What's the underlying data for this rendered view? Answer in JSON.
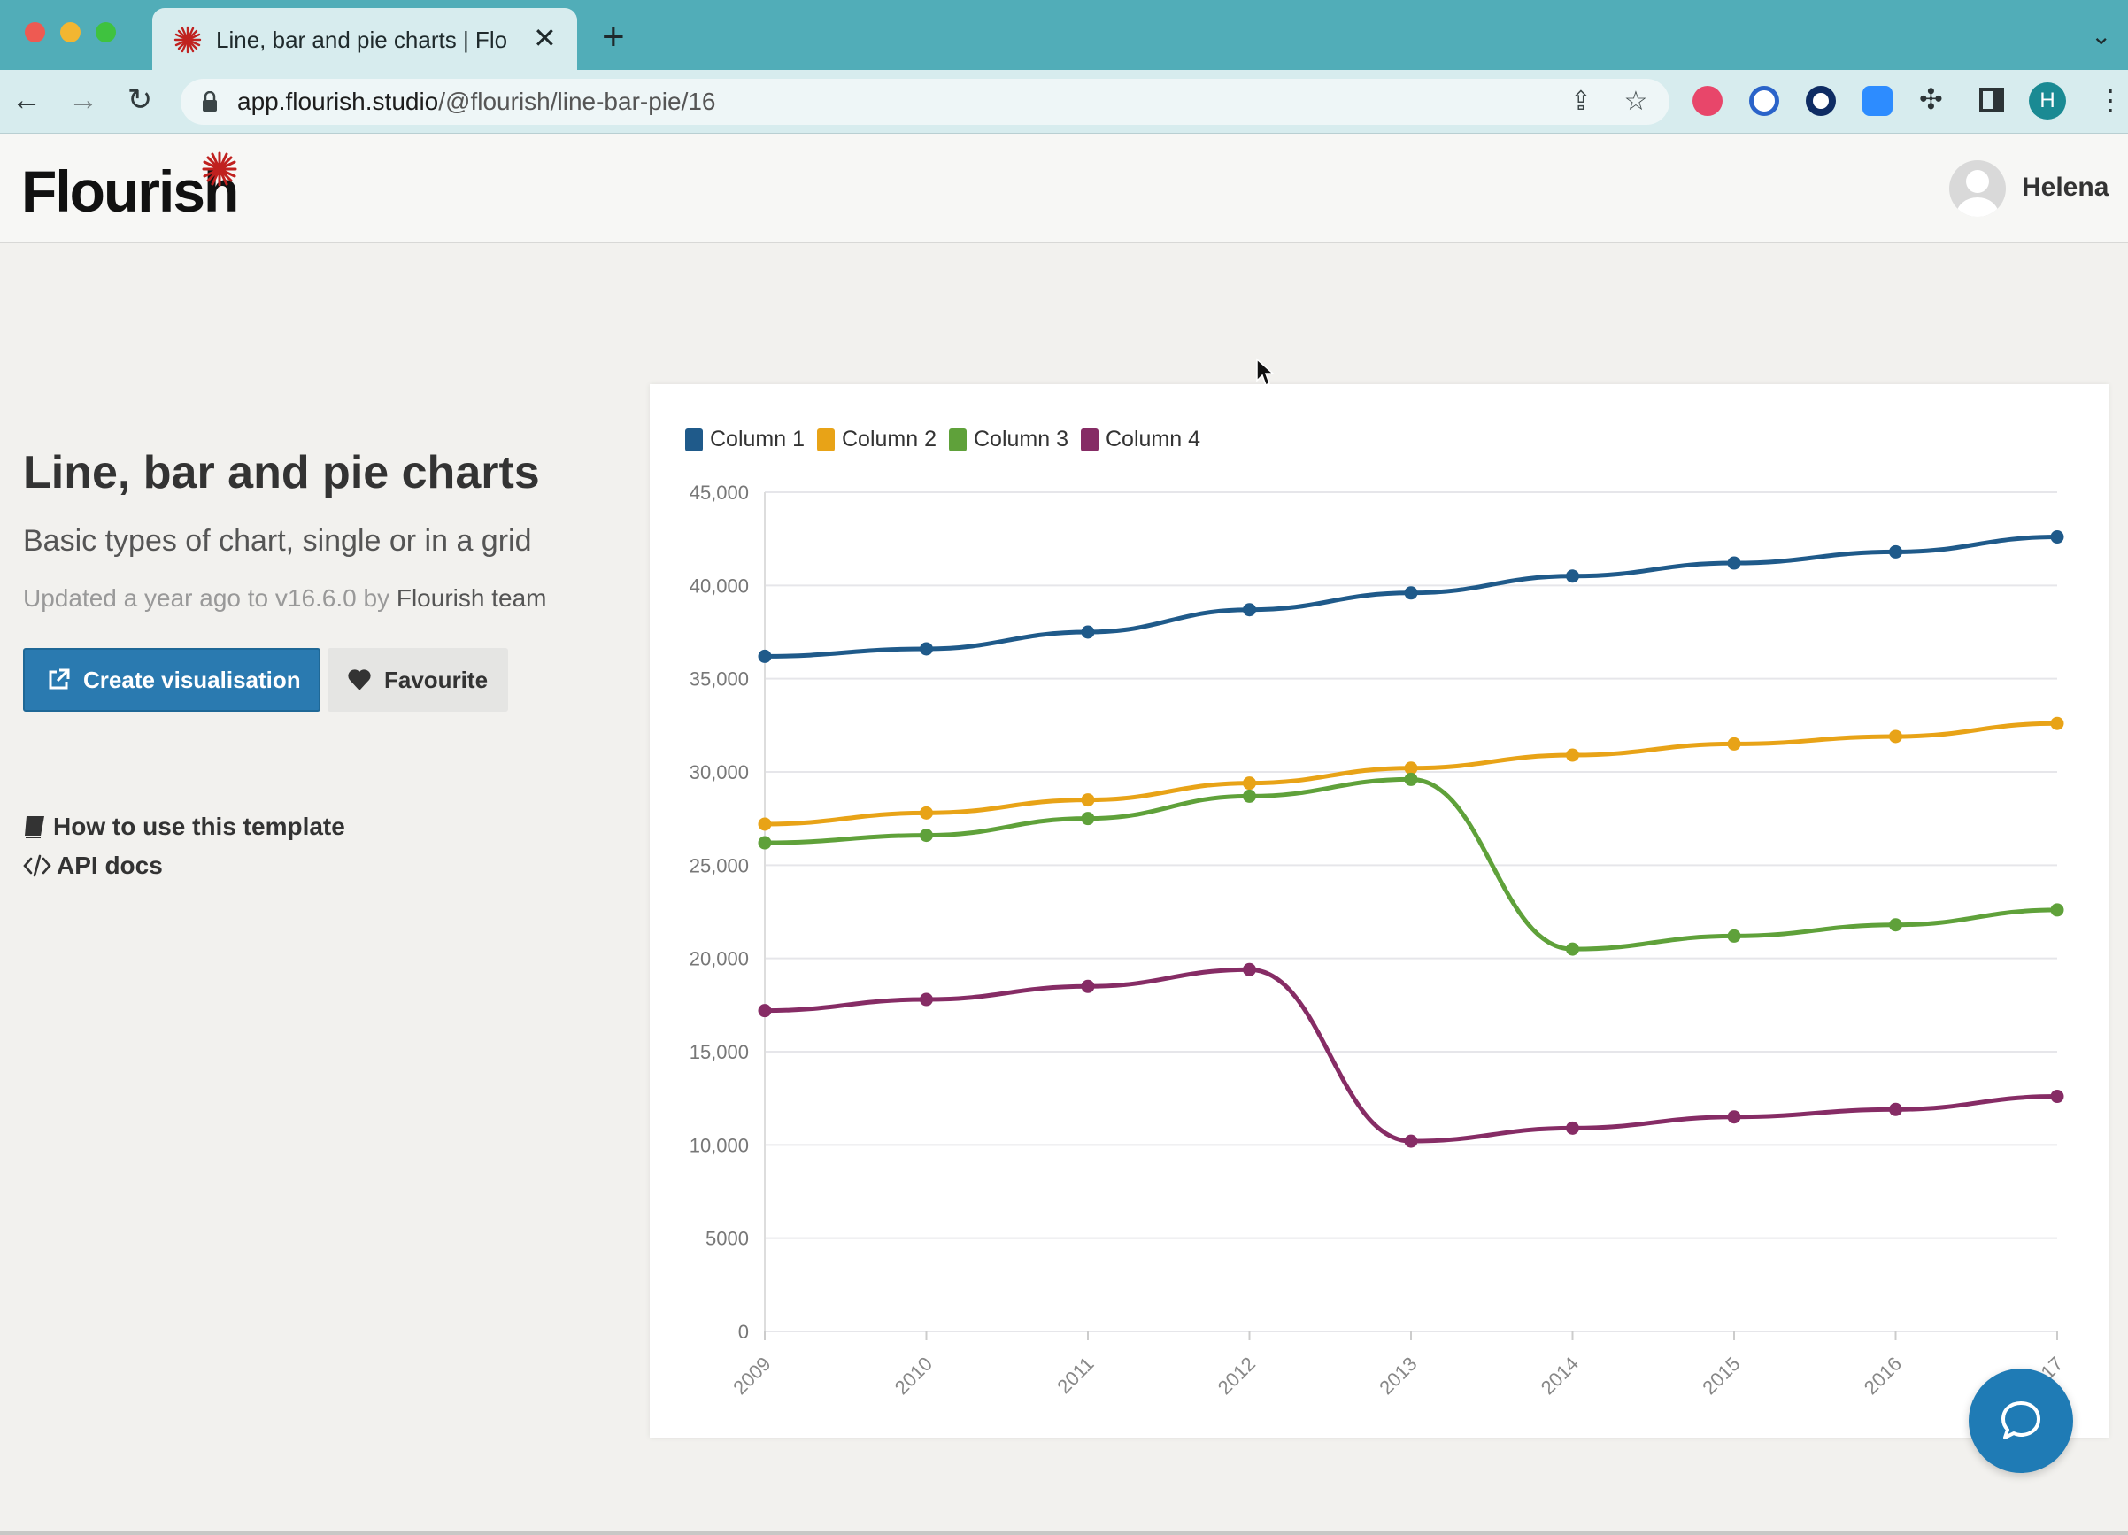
{
  "browser": {
    "tab_title": "Line, bar and pie charts | Flouri",
    "url_host": "app.flourish.studio",
    "url_path": "/@flourish/line-bar-pie/16",
    "profile_initial": "H"
  },
  "header": {
    "logo": "Flourish",
    "user_name": "Helena"
  },
  "template": {
    "title": "Line, bar and pie charts",
    "subtitle": "Basic types of chart, single or in a grid",
    "updated_prefix": "Updated a year ago to v16.6.0 by ",
    "author": "Flourish team",
    "create_label": "Create visualisation",
    "favourite_label": "Favourite",
    "howto_label": "How to use this template",
    "api_label": "API docs"
  },
  "chart_data": {
    "type": "line",
    "x": [
      "2009",
      "2010",
      "2011",
      "2012",
      "2013",
      "2014",
      "2015",
      "2016",
      "2017"
    ],
    "x_tick_labels": [
      "2009",
      "2010",
      "2011",
      "2012",
      "2013",
      "2014",
      "2015",
      "2016",
      "17"
    ],
    "y_tick_labels": [
      "0",
      "5000",
      "10,000",
      "15,000",
      "20,000",
      "25,000",
      "30,000",
      "35,000",
      "40,000",
      "45,000"
    ],
    "ylim": [
      0,
      45000
    ],
    "grid": true,
    "legend_position": "top-left",
    "series": [
      {
        "name": "Column 1",
        "color": "#1f5a8a",
        "values": [
          36200,
          36600,
          37500,
          38700,
          39600,
          40500,
          41200,
          41800,
          42600
        ]
      },
      {
        "name": "Column 2",
        "color": "#e8a317",
        "values": [
          27200,
          27800,
          28500,
          29400,
          30200,
          30900,
          31500,
          31900,
          32600
        ]
      },
      {
        "name": "Column 3",
        "color": "#5fa13a",
        "values": [
          26200,
          26600,
          27500,
          28700,
          29600,
          20500,
          21200,
          21800,
          22600
        ]
      },
      {
        "name": "Column 4",
        "color": "#862c65",
        "values": [
          17200,
          17800,
          18500,
          19400,
          10200,
          10900,
          11500,
          11900,
          12600
        ]
      }
    ]
  }
}
